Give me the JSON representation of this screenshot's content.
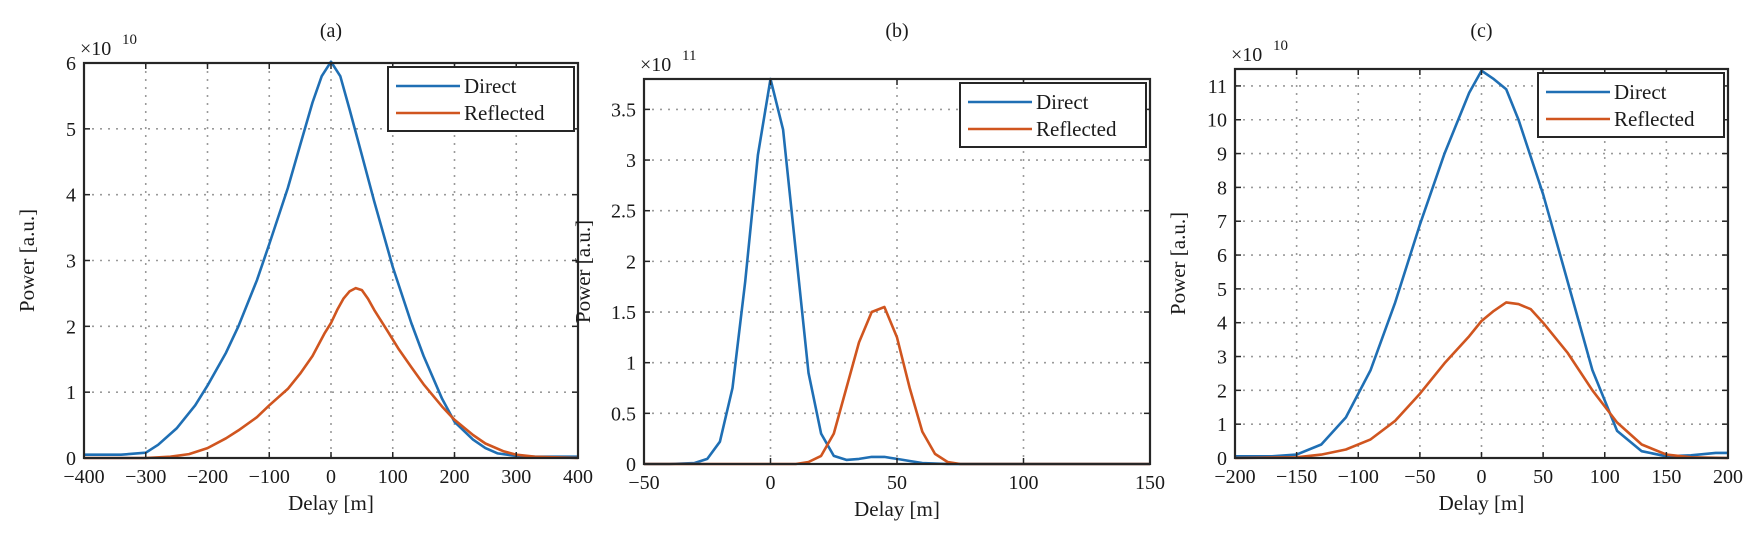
{
  "chart_data": [
    {
      "type": "line",
      "title": "(a)",
      "xlabel": "Delay [m]",
      "ylabel": "Power [a.u.]",
      "multiplier_base": "×10",
      "multiplier_exponent": "10",
      "xlim": [
        -400,
        400
      ],
      "ylim": [
        0,
        6
      ],
      "xticks": [
        -400,
        -300,
        -200,
        -100,
        0,
        100,
        200,
        300,
        400
      ],
      "yticks": [
        0,
        1,
        2,
        3,
        4,
        5,
        6
      ],
      "grid": true,
      "legend_position": "top-right",
      "series": [
        {
          "name": "Direct",
          "color": "#1f6fb4",
          "x": [
            -400,
            -340,
            -300,
            -280,
            -250,
            -220,
            -200,
            -170,
            -150,
            -120,
            -100,
            -70,
            -50,
            -30,
            -15,
            0,
            15,
            30,
            50,
            70,
            100,
            130,
            150,
            180,
            200,
            230,
            250,
            270,
            300,
            330,
            360,
            400
          ],
          "y": [
            0.05,
            0.05,
            0.08,
            0.2,
            0.45,
            0.8,
            1.1,
            1.6,
            2.0,
            2.7,
            3.25,
            4.1,
            4.75,
            5.4,
            5.8,
            6.02,
            5.8,
            5.3,
            4.6,
            3.9,
            2.9,
            2.05,
            1.55,
            0.9,
            0.55,
            0.28,
            0.15,
            0.07,
            0.03,
            0.02,
            0.02,
            0.02
          ]
        },
        {
          "name": "Reflected",
          "color": "#d0551f",
          "x": [
            -400,
            -300,
            -260,
            -230,
            -200,
            -170,
            -150,
            -120,
            -100,
            -70,
            -50,
            -30,
            -10,
            0,
            10,
            20,
            30,
            40,
            50,
            60,
            70,
            90,
            110,
            130,
            150,
            180,
            200,
            230,
            250,
            280,
            300,
            330,
            400
          ],
          "y": [
            0.0,
            0.0,
            0.02,
            0.06,
            0.15,
            0.3,
            0.42,
            0.62,
            0.8,
            1.05,
            1.28,
            1.55,
            1.9,
            2.05,
            2.25,
            2.42,
            2.53,
            2.58,
            2.55,
            2.42,
            2.25,
            1.95,
            1.65,
            1.38,
            1.12,
            0.78,
            0.58,
            0.35,
            0.22,
            0.1,
            0.05,
            0.02,
            0.0
          ]
        }
      ]
    },
    {
      "type": "line",
      "title": "(b)",
      "xlabel": "Delay [m]",
      "ylabel": "Power [a.u.]",
      "multiplier_base": "×10",
      "multiplier_exponent": "11",
      "xlim": [
        -50,
        150
      ],
      "ylim": [
        0,
        3.8
      ],
      "xticks": [
        -50,
        0,
        50,
        100,
        150
      ],
      "yticks": [
        0,
        0.5,
        1,
        1.5,
        2,
        2.5,
        3,
        3.5
      ],
      "grid": true,
      "legend_position": "top-right",
      "series": [
        {
          "name": "Direct",
          "color": "#1f6fb4",
          "x": [
            -50,
            -40,
            -30,
            -25,
            -20,
            -15,
            -10,
            -5,
            0,
            5,
            10,
            15,
            20,
            25,
            30,
            35,
            40,
            45,
            50,
            55,
            60,
            70,
            150
          ],
          "y": [
            0.0,
            0.0,
            0.01,
            0.05,
            0.22,
            0.75,
            1.8,
            3.05,
            3.8,
            3.3,
            2.1,
            0.9,
            0.3,
            0.08,
            0.04,
            0.05,
            0.07,
            0.07,
            0.05,
            0.03,
            0.01,
            0.0,
            0.0
          ]
        },
        {
          "name": "Reflected",
          "color": "#d0551f",
          "x": [
            -50,
            0,
            10,
            15,
            20,
            25,
            30,
            35,
            40,
            45,
            50,
            55,
            60,
            65,
            70,
            75,
            150
          ],
          "y": [
            0.0,
            0.0,
            0.0,
            0.02,
            0.08,
            0.3,
            0.75,
            1.2,
            1.5,
            1.55,
            1.25,
            0.75,
            0.32,
            0.1,
            0.02,
            0.0,
            0.0
          ]
        }
      ]
    },
    {
      "type": "line",
      "title": "(c)",
      "xlabel": "Delay [m]",
      "ylabel": "Power [a.u.]",
      "multiplier_base": "×10",
      "multiplier_exponent": "10",
      "xlim": [
        -200,
        200
      ],
      "ylim": [
        0,
        11.5
      ],
      "xticks": [
        -200,
        -150,
        -100,
        -50,
        0,
        50,
        100,
        150,
        200
      ],
      "yticks": [
        0,
        1,
        2,
        3,
        4,
        5,
        6,
        7,
        8,
        9,
        10,
        11
      ],
      "grid": true,
      "legend_position": "top-right",
      "series": [
        {
          "name": "Direct",
          "color": "#1f6fb4",
          "x": [
            -200,
            -170,
            -150,
            -130,
            -110,
            -90,
            -70,
            -50,
            -30,
            -10,
            0,
            10,
            20,
            30,
            50,
            70,
            90,
            110,
            130,
            150,
            170,
            190,
            200
          ],
          "y": [
            0.05,
            0.05,
            0.1,
            0.4,
            1.2,
            2.6,
            4.6,
            6.9,
            9.0,
            10.8,
            11.45,
            11.2,
            10.9,
            10.0,
            7.8,
            5.2,
            2.6,
            0.8,
            0.2,
            0.05,
            0.08,
            0.15,
            0.15
          ]
        },
        {
          "name": "Reflected",
          "color": "#d0551f",
          "x": [
            -200,
            -150,
            -130,
            -110,
            -90,
            -70,
            -50,
            -30,
            -10,
            0,
            10,
            20,
            30,
            40,
            50,
            70,
            90,
            110,
            130,
            150,
            170,
            200
          ],
          "y": [
            0.0,
            0.02,
            0.1,
            0.25,
            0.55,
            1.1,
            1.9,
            2.8,
            3.6,
            4.05,
            4.35,
            4.6,
            4.55,
            4.4,
            4.0,
            3.1,
            2.0,
            1.05,
            0.4,
            0.1,
            0.02,
            0.0
          ]
        }
      ]
    }
  ]
}
